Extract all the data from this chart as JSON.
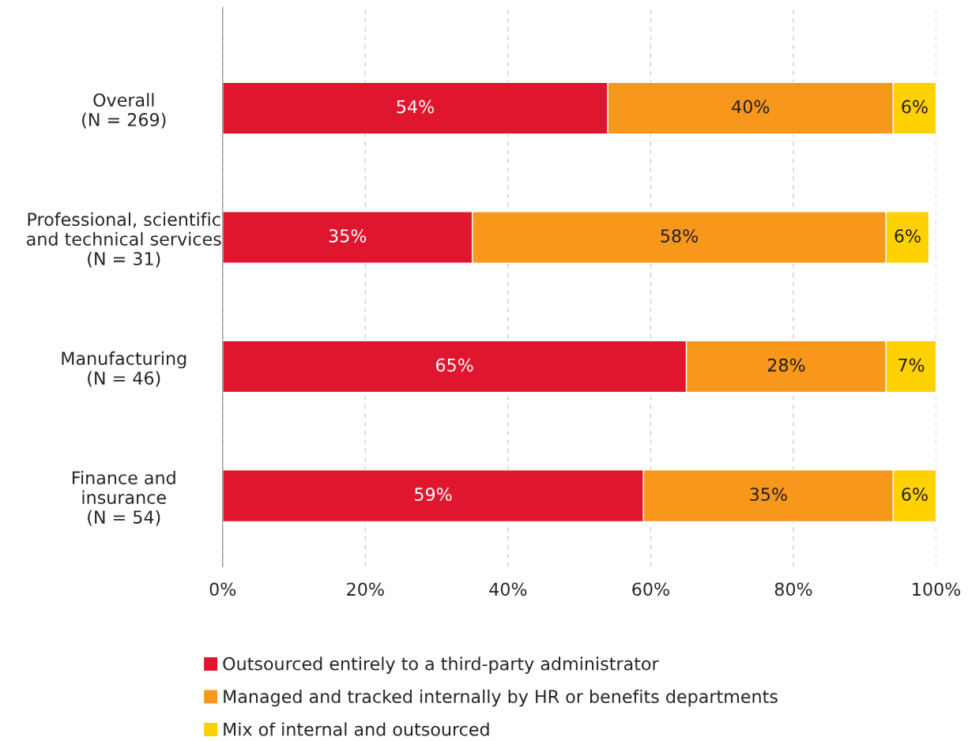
{
  "chart_data": {
    "type": "bar",
    "orientation": "horizontal",
    "stacked": true,
    "categories": [
      "Overall\n(N = 269)",
      "Professional, scientific\nand technical services\n(N = 31)",
      "Manufacturing\n(N = 46)",
      "Finance and\ninsurance\n(N = 54)"
    ],
    "series": [
      {
        "name": "Outsourced entirely to a third-party administrator",
        "color": "#e0162e",
        "values": [
          54,
          35,
          65,
          59
        ],
        "value_labels": [
          "54%",
          "35%",
          "65%",
          "59%"
        ]
      },
      {
        "name": "Managed and tracked internally by HR or benefits departments",
        "color": "#f7981d",
        "values": [
          40,
          58,
          28,
          35
        ],
        "value_labels": [
          "40%",
          "58%",
          "28%",
          "35%"
        ]
      },
      {
        "name": "Mix of internal and outsourced",
        "color": "#ffd100",
        "values": [
          6,
          6,
          7,
          6
        ],
        "value_labels": [
          "6%",
          "6%",
          "7%",
          "6%"
        ]
      }
    ],
    "xlim": [
      0,
      100
    ],
    "xticks": [
      {
        "value": 0,
        "label": "0%"
      },
      {
        "value": 20,
        "label": "20%"
      },
      {
        "value": 40,
        "label": "40%"
      },
      {
        "value": 60,
        "label": "60%"
      },
      {
        "value": 80,
        "label": "80%"
      },
      {
        "value": 100,
        "label": "100%"
      }
    ],
    "grid": "x",
    "legend": "bottom"
  }
}
